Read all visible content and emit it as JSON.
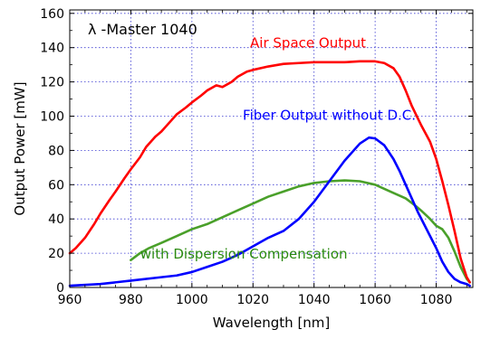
{
  "chart_data": {
    "type": "line",
    "title": "λ -Master 1040",
    "xlabel": "Wavelength [nm]",
    "ylabel": "Output Power [mW]",
    "xlim": [
      960,
      1092
    ],
    "ylim": [
      0,
      162
    ],
    "xticks": [
      960,
      980,
      1000,
      1020,
      1040,
      1060,
      1080
    ],
    "yticks": [
      0,
      20,
      40,
      60,
      80,
      100,
      120,
      140,
      160
    ],
    "grid": true,
    "legend": "inline-labels",
    "series": [
      {
        "name": "Air Space Output",
        "color": "#ff0000",
        "points": [
          [
            960,
            20
          ],
          [
            962,
            23
          ],
          [
            965,
            29
          ],
          [
            968,
            37
          ],
          [
            970,
            43
          ],
          [
            973,
            51
          ],
          [
            975,
            56
          ],
          [
            978,
            64
          ],
          [
            980,
            69
          ],
          [
            983,
            76
          ],
          [
            985,
            82
          ],
          [
            988,
            88
          ],
          [
            990,
            91
          ],
          [
            993,
            97
          ],
          [
            995,
            101
          ],
          [
            998,
            105
          ],
          [
            1000,
            108
          ],
          [
            1003,
            112
          ],
          [
            1005,
            115
          ],
          [
            1008,
            118
          ],
          [
            1010,
            117
          ],
          [
            1013,
            120
          ],
          [
            1015,
            123
          ],
          [
            1018,
            126
          ],
          [
            1020,
            127
          ],
          [
            1025,
            129
          ],
          [
            1030,
            130.5
          ],
          [
            1035,
            131
          ],
          [
            1040,
            131.5
          ],
          [
            1045,
            131.5
          ],
          [
            1050,
            131.5
          ],
          [
            1055,
            132
          ],
          [
            1060,
            132
          ],
          [
            1063,
            131
          ],
          [
            1066,
            128
          ],
          [
            1068,
            123
          ],
          [
            1070,
            115
          ],
          [
            1072,
            106
          ],
          [
            1075,
            95
          ],
          [
            1078,
            85
          ],
          [
            1080,
            75
          ],
          [
            1082,
            62
          ],
          [
            1084,
            48
          ],
          [
            1086,
            33
          ],
          [
            1088,
            17
          ],
          [
            1090,
            6
          ],
          [
            1091,
            3
          ]
        ]
      },
      {
        "name": "Fiber Output without D.C.",
        "color": "#0000ff",
        "points": [
          [
            960,
            1
          ],
          [
            970,
            2
          ],
          [
            980,
            4
          ],
          [
            990,
            6
          ],
          [
            995,
            7
          ],
          [
            1000,
            9
          ],
          [
            1005,
            12
          ],
          [
            1010,
            15
          ],
          [
            1015,
            19
          ],
          [
            1020,
            24
          ],
          [
            1025,
            29
          ],
          [
            1030,
            33
          ],
          [
            1035,
            40
          ],
          [
            1040,
            50
          ],
          [
            1045,
            62
          ],
          [
            1050,
            74
          ],
          [
            1055,
            84
          ],
          [
            1058,
            87.5
          ],
          [
            1060,
            87
          ],
          [
            1063,
            83
          ],
          [
            1066,
            75
          ],
          [
            1068,
            68
          ],
          [
            1070,
            60
          ],
          [
            1072,
            52
          ],
          [
            1074,
            44
          ],
          [
            1076,
            37
          ],
          [
            1078,
            30
          ],
          [
            1080,
            23
          ],
          [
            1082,
            15
          ],
          [
            1084,
            9
          ],
          [
            1086,
            5
          ],
          [
            1088,
            3
          ],
          [
            1090,
            2
          ],
          [
            1091,
            1
          ]
        ]
      },
      {
        "name": "with Dispersion Compensation",
        "color": "#4aa02a",
        "points": [
          [
            980,
            16
          ],
          [
            983,
            20
          ],
          [
            986,
            23
          ],
          [
            990,
            26
          ],
          [
            995,
            30
          ],
          [
            1000,
            34
          ],
          [
            1005,
            37
          ],
          [
            1010,
            41
          ],
          [
            1015,
            45
          ],
          [
            1020,
            49
          ],
          [
            1025,
            53
          ],
          [
            1030,
            56
          ],
          [
            1035,
            59
          ],
          [
            1040,
            61
          ],
          [
            1045,
            62
          ],
          [
            1050,
            62.5
          ],
          [
            1055,
            62
          ],
          [
            1060,
            60
          ],
          [
            1065,
            56
          ],
          [
            1070,
            52
          ],
          [
            1073,
            48
          ],
          [
            1075,
            45
          ],
          [
            1078,
            40
          ],
          [
            1080,
            36
          ],
          [
            1082,
            34
          ],
          [
            1084,
            29
          ],
          [
            1086,
            21
          ],
          [
            1088,
            12
          ],
          [
            1090,
            5
          ],
          [
            1091,
            3
          ]
        ]
      }
    ],
    "annotations": [
      {
        "text": "Air Space Output",
        "x": 1057,
        "y": 140,
        "anchor": "end",
        "color": "#ff0000"
      },
      {
        "text": "Fiber Output without D.C.",
        "x": 1045,
        "y": 98,
        "anchor": "middle",
        "color": "#0000ff"
      },
      {
        "text": "with Dispersion Compensation",
        "x": 1017,
        "y": 17,
        "anchor": "middle",
        "color": "#2a8a10"
      }
    ]
  }
}
